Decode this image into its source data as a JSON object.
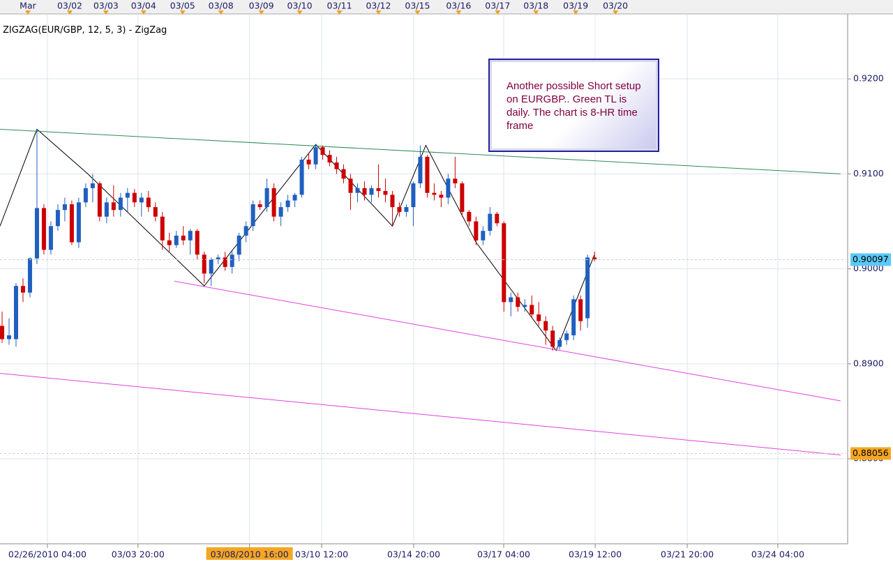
{
  "chart_data": {
    "type": "candlestick",
    "title": "ZIGZAG(EUR/GBP, 12, 5, 3) - ZigZag",
    "annotation": "Another possible Short setup on EURGBP.. Green TL is daily. The chart is 8-HR time frame",
    "up_color": "#1f5fbf",
    "down_color": "#cc0000",
    "open": [
      0.894,
      0.8926,
      0.8926,
      0.8982,
      0.8975,
      0.9011,
      0.9064,
      0.902,
      0.9045,
      0.9062,
      0.9068,
      0.9028,
      0.907,
      0.9085,
      0.909,
      0.9055,
      0.907,
      0.9062,
      0.9075,
      0.908,
      0.907,
      0.9075,
      0.9065,
      0.9055,
      0.903,
      0.9025,
      0.9035,
      0.903,
      0.904,
      0.9015,
      0.8995,
      0.901,
      0.9012,
      0.9002,
      0.9015,
      0.9035,
      0.9045,
      0.9068,
      0.9065,
      0.9085,
      0.9055,
      0.9065,
      0.9072,
      0.9078,
      0.9115,
      0.911,
      0.9128,
      0.912,
      0.9112,
      0.9105,
      0.9095,
      0.908,
      0.9085,
      0.9078,
      0.9085,
      0.9082,
      0.9078,
      0.9065,
      0.906,
      0.9065,
      0.909,
      0.9118,
      0.908,
      0.9078,
      0.9075,
      0.9095,
      0.909,
      0.906,
      0.905,
      0.903,
      0.904,
      0.9058,
      0.9048,
      0.8965,
      0.897,
      0.896,
      0.8962,
      0.8952,
      0.8945,
      0.8935,
      0.8918,
      0.8925,
      0.893,
      0.8968,
      0.8948,
      0.9012
    ],
    "high": [
      0.8955,
      0.8948,
      0.8985,
      0.899,
      0.9012,
      0.9147,
      0.9068,
      0.905,
      0.9068,
      0.9075,
      0.9072,
      0.9075,
      0.909,
      0.91,
      0.9092,
      0.9075,
      0.9088,
      0.908,
      0.9085,
      0.9084,
      0.908,
      0.9082,
      0.907,
      0.906,
      0.9038,
      0.904,
      0.9045,
      0.9042,
      0.9042,
      0.9018,
      0.9012,
      0.9015,
      0.9018,
      0.902,
      0.9038,
      0.905,
      0.9072,
      0.9072,
      0.9095,
      0.909,
      0.907,
      0.9078,
      0.908,
      0.9118,
      0.9122,
      0.9131,
      0.913,
      0.9125,
      0.9118,
      0.911,
      0.91,
      0.909,
      0.9092,
      0.9088,
      0.911,
      0.9095,
      0.9082,
      0.907,
      0.9068,
      0.9092,
      0.913,
      0.912,
      0.909,
      0.9082,
      0.91,
      0.9118,
      0.9092,
      0.9062,
      0.9055,
      0.9045,
      0.9065,
      0.906,
      0.905,
      0.8975,
      0.8975,
      0.8968,
      0.8972,
      0.8965,
      0.895,
      0.894,
      0.8928,
      0.8935,
      0.8972,
      0.8972,
      0.9015,
      0.9018
    ],
    "low": [
      0.8922,
      0.892,
      0.8918,
      0.8965,
      0.897,
      0.9005,
      0.9015,
      0.9015,
      0.904,
      0.905,
      0.9025,
      0.9022,
      0.9065,
      0.907,
      0.905,
      0.9048,
      0.9055,
      0.9055,
      0.906,
      0.9065,
      0.9055,
      0.906,
      0.905,
      0.902,
      0.9018,
      0.9022,
      0.9025,
      0.9015,
      0.901,
      0.8985,
      0.8982,
      0.9005,
      0.8998,
      0.8995,
      0.9008,
      0.9028,
      0.904,
      0.9062,
      0.906,
      0.905,
      0.9045,
      0.906,
      0.9065,
      0.9075,
      0.9105,
      0.9105,
      0.9115,
      0.9108,
      0.91,
      0.909,
      0.9062,
      0.907,
      0.9072,
      0.907,
      0.9075,
      0.907,
      0.9045,
      0.9055,
      0.9055,
      0.9045,
      0.9085,
      0.9075,
      0.9072,
      0.9065,
      0.9068,
      0.9085,
      0.9055,
      0.9045,
      0.9025,
      0.9025,
      0.9035,
      0.9045,
      0.8955,
      0.895,
      0.8955,
      0.8955,
      0.8948,
      0.894,
      0.892,
      0.8914,
      0.8915,
      0.892,
      0.8925,
      0.8935,
      0.8938,
      0.9008
    ],
    "close": [
      0.8926,
      0.893,
      0.8982,
      0.8975,
      0.9011,
      0.9064,
      0.902,
      0.9045,
      0.9062,
      0.9068,
      0.9028,
      0.907,
      0.9085,
      0.909,
      0.9055,
      0.907,
      0.9062,
      0.9075,
      0.908,
      0.907,
      0.9075,
      0.9065,
      0.9055,
      0.903,
      0.9025,
      0.9035,
      0.903,
      0.904,
      0.9015,
      0.8995,
      0.901,
      0.9012,
      0.9002,
      0.9015,
      0.9035,
      0.9045,
      0.9068,
      0.9065,
      0.9085,
      0.9055,
      0.9065,
      0.9072,
      0.9078,
      0.9115,
      0.911,
      0.9128,
      0.912,
      0.9112,
      0.9105,
      0.9095,
      0.908,
      0.9085,
      0.9078,
      0.9085,
      0.9082,
      0.9078,
      0.9065,
      0.906,
      0.9065,
      0.909,
      0.9118,
      0.908,
      0.9078,
      0.9075,
      0.9095,
      0.909,
      0.906,
      0.905,
      0.903,
      0.904,
      0.9058,
      0.9048,
      0.8965,
      0.897,
      0.896,
      0.8962,
      0.8952,
      0.8945,
      0.8935,
      0.8918,
      0.8925,
      0.8932,
      0.8968,
      0.8945,
      0.9012,
      0.901
    ],
    "lines": [
      {
        "name": "ZigZag",
        "color": "#000000",
        "x": [
          -0.3,
          5,
          12.3,
          29,
          45,
          56,
          60.8,
          68,
          79.5,
          85
        ],
        "values": [
          0.9045,
          0.9147,
          0.91,
          0.8982,
          0.9131,
          0.9045,
          0.913,
          0.9028,
          0.8914,
          0.9015
        ]
      },
      {
        "color": "#2e8b57",
        "x": [
          -0.3,
          120.3
        ],
        "values": [
          0.9147,
          0.91
        ]
      },
      {
        "color": "#e040e0",
        "x": [
          24.7,
          120.3
        ],
        "values": [
          0.8987,
          0.8861
        ]
      },
      {
        "color": "#e040e0",
        "x": [
          -0.3,
          120.3
        ],
        "values": [
          0.889,
          0.8804
        ]
      }
    ],
    "price_labels": [
      {
        "value": 0.90097,
        "color": "#5bc8f5"
      },
      {
        "value": 0.88056,
        "color": "#f5a623"
      }
    ],
    "xlim": [
      -0.3,
      121.12
    ],
    "ylim": [
      0.8712,
      0.92684
    ],
    "yticks": [
      {
        "value": 0.92,
        "label": "0.9200"
      },
      {
        "value": 0.91,
        "label": "0.9100"
      },
      {
        "value": 0.9,
        "label": "0.9000"
      },
      {
        "value": 0.89,
        "label": "0.8900"
      },
      {
        "value": 0.88,
        "label": "0.8800"
      }
    ],
    "xticks": [
      {
        "value": 6.5,
        "label": "02/26/2010 04:00"
      },
      {
        "value": 19.5,
        "label": "03/03 20:00"
      },
      {
        "value": 35.5,
        "label": "03/08/2010 16:00"
      },
      {
        "value": 45.85,
        "label": "03/10 12:00"
      },
      {
        "value": 59.06,
        "label": "03/14 20:00"
      },
      {
        "value": 71.97,
        "label": "03/17 04:00"
      },
      {
        "value": 85.09,
        "label": "03/19 12:00"
      },
      {
        "value": 98.3,
        "label": "03/21 20:00"
      },
      {
        "value": 111.3,
        "label": "03/24 04:00"
      }
    ],
    "top_xticks": [
      {
        "value": 3.7,
        "label": "Mar"
      },
      {
        "value": 9.71,
        "label": "03/02"
      },
      {
        "value": 14.9,
        "label": "03/03"
      },
      {
        "value": 20.3,
        "label": "03/04"
      },
      {
        "value": 25.9,
        "label": "03/05"
      },
      {
        "value": 31.4,
        "label": "03/08"
      },
      {
        "value": 37.2,
        "label": "03/09"
      },
      {
        "value": 42.7,
        "label": "03/10"
      },
      {
        "value": 48.4,
        "label": "03/11"
      },
      {
        "value": 54,
        "label": "03/12"
      },
      {
        "value": 59.6,
        "label": "03/15"
      },
      {
        "value": 65.5,
        "label": "03/16"
      },
      {
        "value": 71.1,
        "label": "03/17"
      },
      {
        "value": 76.6,
        "label": "03/18"
      },
      {
        "value": 82.3,
        "label": "03/19"
      },
      {
        "value": 88,
        "label": "03/20"
      }
    ],
    "grid": true
  }
}
